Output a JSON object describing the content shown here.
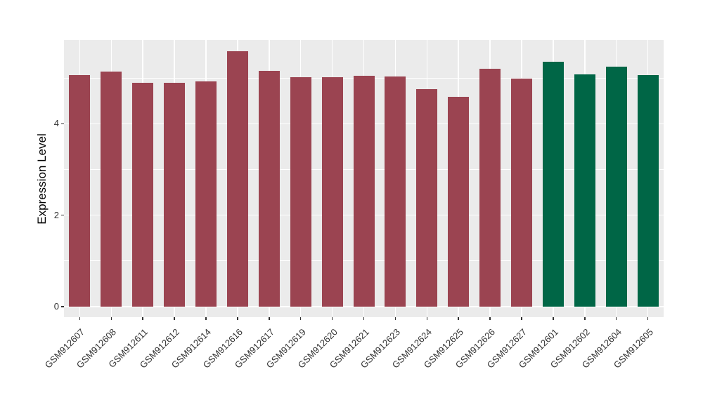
{
  "figure": {
    "background": "#FFFFFF"
  },
  "chart_data": {
    "type": "bar",
    "title": "",
    "xlabel": "",
    "ylabel": "Expression Level",
    "categories": [
      "GSM912607",
      "GSM912608",
      "GSM912611",
      "GSM912612",
      "GSM912614",
      "GSM912616",
      "GSM912617",
      "GSM912619",
      "GSM912620",
      "GSM912621",
      "GSM912623",
      "GSM912624",
      "GSM912625",
      "GSM912626",
      "GSM912627",
      "GSM912601",
      "GSM912602",
      "GSM912604",
      "GSM912605"
    ],
    "values": [
      5.06,
      5.14,
      4.9,
      4.9,
      4.93,
      5.58,
      5.15,
      5.01,
      5.02,
      5.05,
      5.03,
      4.75,
      4.58,
      5.2,
      4.98,
      5.35,
      5.08,
      5.25,
      5.06
    ],
    "bar_groups": [
      0,
      0,
      0,
      0,
      0,
      0,
      0,
      0,
      0,
      0,
      0,
      0,
      0,
      0,
      0,
      1,
      1,
      1,
      1
    ],
    "group_palette": [
      "#9B4451",
      "#006646"
    ],
    "y_ticks": [
      0,
      2,
      4
    ],
    "y_minor_gridlines": [
      1,
      3,
      5
    ],
    "ylim": [
      -0.23,
      5.83
    ],
    "bar_width_fraction": 0.67,
    "grid": true,
    "legend_position": "none",
    "panel_background": "#EBEBEB",
    "gridline_color": "#FFFFFF",
    "axis_text_color": "#333333",
    "axis_title_color": "#000000",
    "tick_mark_color": "#333333"
  }
}
